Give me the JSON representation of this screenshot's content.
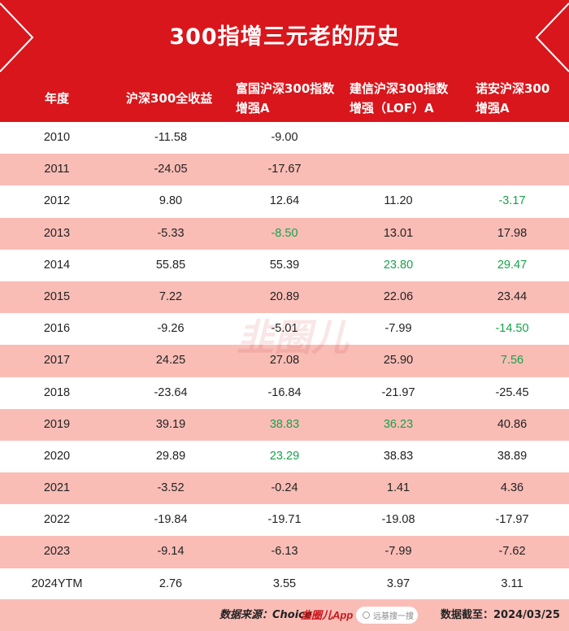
{
  "title": "300指增三元老的历史",
  "columns": [
    {
      "line1": "年度",
      "line2": ""
    },
    {
      "line1": "沪深300全收益",
      "line2": ""
    },
    {
      "line1": "富国沪深300指数",
      "line2": "增强A"
    },
    {
      "line1": "建信沪深300指数",
      "line2": "增强（LOF）A"
    },
    {
      "line1": "诺安沪深300",
      "line2": "增强A"
    }
  ],
  "rows": [
    {
      "cells": [
        "2010",
        "-11.58",
        "-9.00",
        "",
        ""
      ],
      "green": [
        false,
        false,
        false,
        false,
        false
      ]
    },
    {
      "cells": [
        "2011",
        "-24.05",
        "-17.67",
        "",
        ""
      ],
      "green": [
        false,
        false,
        false,
        false,
        false
      ]
    },
    {
      "cells": [
        "2012",
        "9.80",
        "12.64",
        "11.20",
        "-3.17"
      ],
      "green": [
        false,
        false,
        false,
        false,
        true
      ]
    },
    {
      "cells": [
        "2013",
        "-5.33",
        "-8.50",
        "13.01",
        "17.98"
      ],
      "green": [
        false,
        false,
        true,
        false,
        false
      ]
    },
    {
      "cells": [
        "2014",
        "55.85",
        "55.39",
        "23.80",
        "29.47"
      ],
      "green": [
        false,
        false,
        false,
        true,
        true
      ]
    },
    {
      "cells": [
        "2015",
        "7.22",
        "20.89",
        "22.06",
        "23.44"
      ],
      "green": [
        false,
        false,
        false,
        false,
        false
      ]
    },
    {
      "cells": [
        "2016",
        "-9.26",
        "-5.01",
        "-7.99",
        "-14.50"
      ],
      "green": [
        false,
        false,
        false,
        false,
        true
      ]
    },
    {
      "cells": [
        "2017",
        "24.25",
        "27.08",
        "25.90",
        "7.56"
      ],
      "green": [
        false,
        false,
        false,
        false,
        true
      ]
    },
    {
      "cells": [
        "2018",
        "-23.64",
        "-16.84",
        "-21.97",
        "-25.45"
      ],
      "green": [
        false,
        false,
        false,
        false,
        false
      ]
    },
    {
      "cells": [
        "2019",
        "39.19",
        "38.83",
        "36.23",
        "40.86"
      ],
      "green": [
        false,
        false,
        true,
        true,
        false
      ]
    },
    {
      "cells": [
        "2020",
        "29.89",
        "23.29",
        "38.83",
        "38.89"
      ],
      "green": [
        false,
        false,
        true,
        false,
        false
      ]
    },
    {
      "cells": [
        "2021",
        "-3.52",
        "-0.24",
        "1.41",
        "4.36"
      ],
      "green": [
        false,
        false,
        false,
        false,
        false
      ]
    },
    {
      "cells": [
        "2022",
        "-19.84",
        "-19.71",
        "-19.08",
        "-17.97"
      ],
      "green": [
        false,
        false,
        false,
        false,
        false
      ]
    },
    {
      "cells": [
        "2023",
        "-9.14",
        "-6.13",
        "-7.99",
        "-7.62"
      ],
      "green": [
        false,
        false,
        false,
        false,
        false
      ]
    },
    {
      "cells": [
        "2024YTM",
        "2.76",
        "3.55",
        "3.97",
        "3.11"
      ],
      "green": [
        false,
        false,
        false,
        false,
        false
      ]
    }
  ],
  "footer": {
    "source_label": "数据来源：Choice",
    "brand": "韭圈儿App",
    "search_text": "远基搜一搜",
    "date_label": "数据截至：2024/03/25"
  },
  "watermark_text": "韭圈儿",
  "colors": {
    "header_red": "#d9161c",
    "stripe_pink": "#f9bdb6",
    "highlight_green": "#16a34a"
  }
}
